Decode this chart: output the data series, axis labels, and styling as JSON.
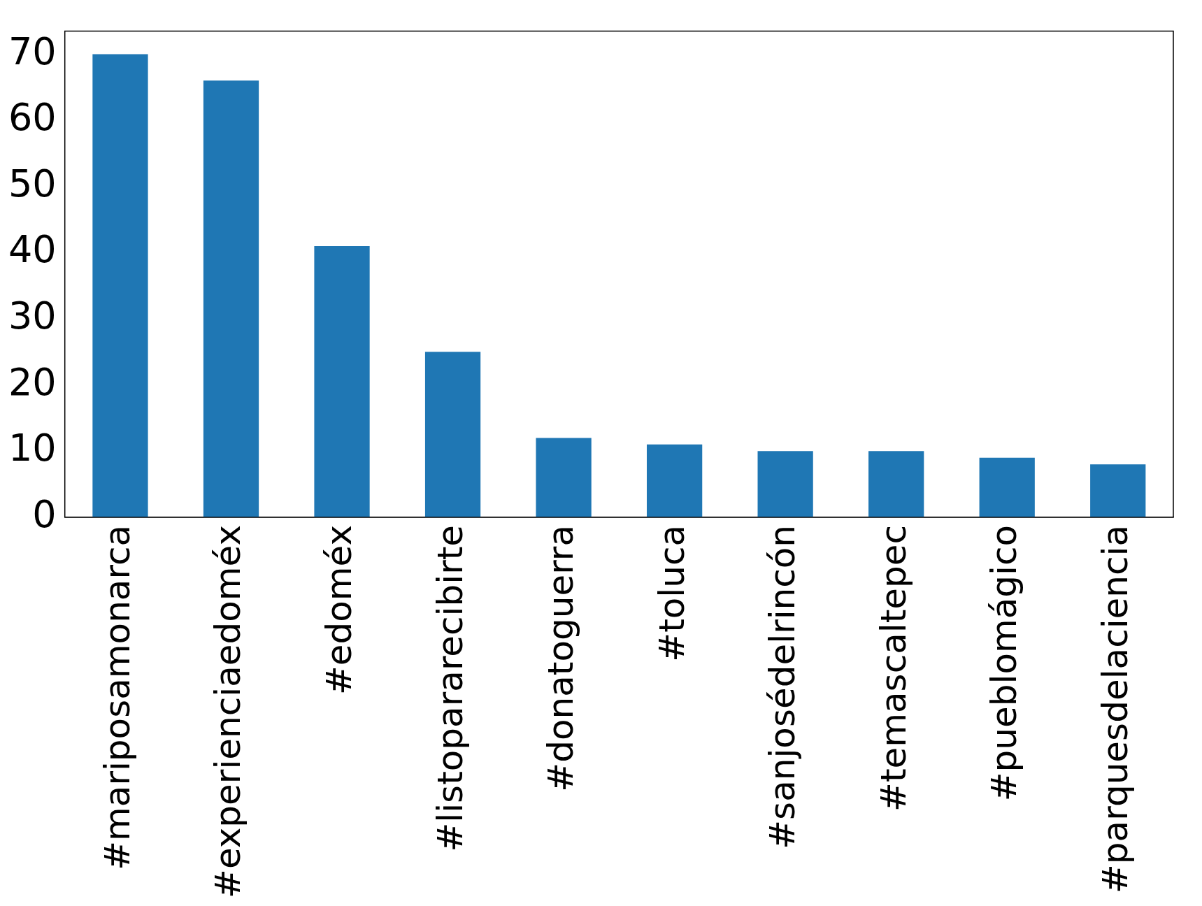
{
  "chart_data": {
    "type": "bar",
    "categories": [
      "#mariposamonarca",
      "#experienciaedoméx",
      "#edoméx",
      "#listopararecibirte",
      "#donatoguerra",
      "#toluca",
      "#sanjosédelrincón",
      "#temascaltepec",
      "#pueblomágico",
      "#parquesdelaciencia"
    ],
    "values": [
      70,
      66,
      41,
      25,
      12,
      11,
      10,
      10,
      9,
      8
    ],
    "color": "#1f77b4",
    "ylim": [
      0,
      73.5
    ],
    "yticks": [
      0,
      10,
      20,
      30,
      40,
      50,
      60,
      70
    ],
    "grid": false,
    "legend": false
  }
}
